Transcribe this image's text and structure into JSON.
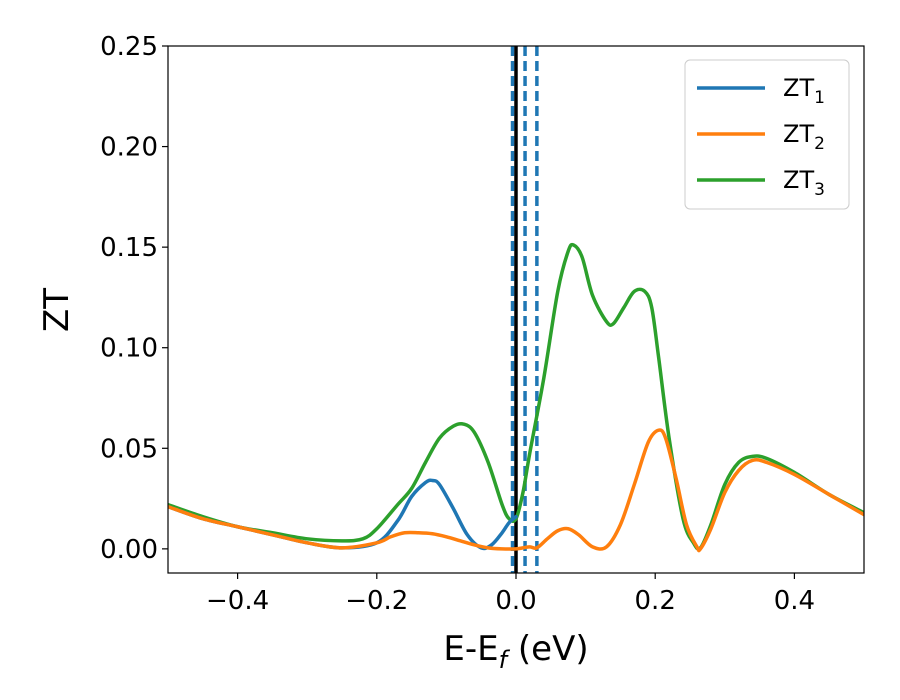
{
  "chart_data": {
    "type": "line",
    "xlabel": "E-E",
    "xlabel_sub": "f",
    "xlabel_unit": " (eV)",
    "ylabel": "ZT",
    "xlim": [
      -0.5,
      0.5
    ],
    "ylim": [
      -0.012,
      0.25
    ],
    "xticks": [
      -0.4,
      -0.2,
      0.0,
      0.2,
      0.4
    ],
    "xtick_labels": [
      "−0.4",
      "−0.2",
      "0.0",
      "0.2",
      "0.4"
    ],
    "yticks": [
      0.0,
      0.05,
      0.1,
      0.15,
      0.2,
      0.25
    ],
    "ytick_labels": [
      "0.00",
      "0.05",
      "0.10",
      "0.15",
      "0.20",
      "0.25"
    ],
    "grid": false,
    "legend_position": "top-right",
    "reference_lines": [
      {
        "x": 0.0,
        "style": "solid",
        "color": "#000000"
      },
      {
        "x": -0.005,
        "style": "dashed",
        "color": "#1f77b4"
      },
      {
        "x": 0.013,
        "style": "dashed",
        "color": "#1f77b4"
      },
      {
        "x": 0.03,
        "style": "dashed",
        "color": "#1f77b4"
      }
    ],
    "series": [
      {
        "name": "ZT",
        "sub": "1",
        "color": "#1f77b4",
        "x": [
          -0.5,
          -0.45,
          -0.4,
          -0.35,
          -0.3,
          -0.25,
          -0.2,
          -0.17,
          -0.15,
          -0.13,
          -0.12,
          -0.11,
          -0.09,
          -0.07,
          -0.05,
          -0.035,
          -0.02,
          -0.01,
          0.0
        ],
        "y": [
          0.021,
          0.015,
          0.011,
          0.007,
          0.003,
          0.0005,
          0.003,
          0.014,
          0.026,
          0.033,
          0.034,
          0.032,
          0.02,
          0.007,
          0.0005,
          0.002,
          0.008,
          0.013,
          0.016
        ]
      },
      {
        "name": "ZT",
        "sub": "2",
        "color": "#ff7f0e",
        "x": [
          -0.5,
          -0.45,
          -0.4,
          -0.35,
          -0.3,
          -0.25,
          -0.2,
          -0.18,
          -0.16,
          -0.14,
          -0.12,
          -0.1,
          -0.08,
          -0.06,
          -0.04,
          -0.02,
          0.0,
          0.01,
          0.02,
          0.03,
          0.045,
          0.06,
          0.075,
          0.09,
          0.11,
          0.13,
          0.15,
          0.17,
          0.19,
          0.205,
          0.215,
          0.23,
          0.245,
          0.26,
          0.265,
          0.28,
          0.3,
          0.32,
          0.34,
          0.36,
          0.4,
          0.45,
          0.5
        ],
        "y": [
          0.021,
          0.015,
          0.011,
          0.007,
          0.003,
          0.0005,
          0.003,
          0.006,
          0.008,
          0.008,
          0.0075,
          0.006,
          0.004,
          0.002,
          0.0005,
          0.0,
          0.0,
          0.0005,
          0.001,
          0.0005,
          0.005,
          0.009,
          0.01,
          0.007,
          0.001,
          0.001,
          0.012,
          0.032,
          0.053,
          0.059,
          0.055,
          0.035,
          0.012,
          0.001,
          0.0,
          0.01,
          0.028,
          0.039,
          0.044,
          0.043,
          0.037,
          0.027,
          0.017
        ]
      },
      {
        "name": "ZT",
        "sub": "3",
        "color": "#2ca02c",
        "x": [
          -0.5,
          -0.45,
          -0.4,
          -0.35,
          -0.3,
          -0.25,
          -0.22,
          -0.2,
          -0.17,
          -0.15,
          -0.13,
          -0.11,
          -0.09,
          -0.075,
          -0.06,
          -0.04,
          -0.02,
          -0.01,
          0.0,
          0.01,
          0.02,
          0.04,
          0.06,
          0.075,
          0.083,
          0.095,
          0.11,
          0.13,
          0.14,
          0.155,
          0.17,
          0.185,
          0.195,
          0.205,
          0.22,
          0.24,
          0.255,
          0.265,
          0.28,
          0.3,
          0.32,
          0.34,
          0.36,
          0.4,
          0.45,
          0.5
        ],
        "y": [
          0.022,
          0.016,
          0.011,
          0.008,
          0.005,
          0.004,
          0.005,
          0.01,
          0.022,
          0.03,
          0.043,
          0.055,
          0.061,
          0.062,
          0.058,
          0.043,
          0.022,
          0.015,
          0.015,
          0.028,
          0.048,
          0.085,
          0.128,
          0.148,
          0.151,
          0.145,
          0.126,
          0.113,
          0.112,
          0.12,
          0.128,
          0.128,
          0.12,
          0.095,
          0.055,
          0.015,
          0.003,
          0.0005,
          0.012,
          0.032,
          0.043,
          0.046,
          0.045,
          0.038,
          0.027,
          0.018
        ]
      }
    ]
  }
}
